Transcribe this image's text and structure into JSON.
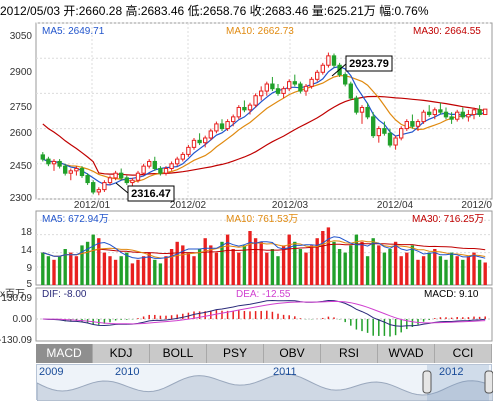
{
  "info": {
    "date": "2012/05/03",
    "open_label": "开:",
    "open": "2660.28",
    "high_label": "高:",
    "high": "2683.46",
    "low_label": "低:",
    "low": "2658.76",
    "close_label": "收:",
    "close": "2683.46",
    "volume_label": "量:",
    "volume": "625.21万",
    "change_label": "幅:",
    "change": "0.76%"
  },
  "price_panel": {
    "ma5": "MA5: 2649.71",
    "ma10": "MA10: 2662.73",
    "ma30": "MA30: 2664.55",
    "y_ticks": [
      "3050",
      "2900",
      "2750",
      "2600",
      "2450",
      "2300"
    ],
    "x_ticks": [
      "2012/01",
      "2012/02",
      "2012/03",
      "2012/04",
      "2012/0"
    ],
    "high_callout": "2923.79",
    "low_callout": "2316.47"
  },
  "volume_panel": {
    "ma5": "MA5: 672.94万",
    "ma10": "MA10: 761.53万",
    "ma30": "MA30: 716.25万",
    "y_ticks": [
      "18",
      "14",
      "9",
      "5"
    ],
    "unit": "x百万"
  },
  "macd_panel": {
    "dif": "DIF: -8.00",
    "dea": "DEA: -12.55",
    "macd": "MACD: 9.10",
    "y_ticks": [
      "130.09",
      "0.00",
      "-130.09"
    ]
  },
  "tabs": [
    "MACD",
    "KDJ",
    "BOLL",
    "PSY",
    "OBV",
    "RSI",
    "WVAD",
    "CCI"
  ],
  "navigator": {
    "years": [
      "2009",
      "2010",
      "2011",
      "2012"
    ]
  },
  "colors": {
    "up": "#e8201f",
    "down": "#21a02a",
    "ma5": "#2255cc",
    "ma10": "#e08a10",
    "ma30": "#c00000",
    "dif": "#2a2a7a",
    "dea": "#d040d0"
  },
  "chart_data": {
    "type": "candlestick",
    "x_range": [
      "2011-12-05",
      "2012-05-03"
    ],
    "y_range": [
      2300,
      3050
    ],
    "ohlc": [
      [
        2488,
        2500,
        2460,
        2470
      ],
      [
        2470,
        2480,
        2440,
        2450
      ],
      [
        2450,
        2470,
        2420,
        2460
      ],
      [
        2460,
        2470,
        2430,
        2440
      ],
      [
        2440,
        2450,
        2400,
        2410
      ],
      [
        2410,
        2430,
        2380,
        2420
      ],
      [
        2420,
        2440,
        2400,
        2430
      ],
      [
        2430,
        2440,
        2390,
        2400
      ],
      [
        2400,
        2410,
        2360,
        2370
      ],
      [
        2370,
        2380,
        2320,
        2330
      ],
      [
        2330,
        2350,
        2316,
        2340
      ],
      [
        2340,
        2380,
        2330,
        2370
      ],
      [
        2370,
        2400,
        2360,
        2390
      ],
      [
        2390,
        2420,
        2380,
        2410
      ],
      [
        2410,
        2430,
        2380,
        2390
      ],
      [
        2390,
        2400,
        2360,
        2370
      ],
      [
        2370,
        2390,
        2350,
        2380
      ],
      [
        2380,
        2420,
        2370,
        2410
      ],
      [
        2410,
        2450,
        2400,
        2440
      ],
      [
        2440,
        2470,
        2430,
        2460
      ],
      [
        2460,
        2480,
        2420,
        2430
      ],
      [
        2430,
        2440,
        2400,
        2410
      ],
      [
        2410,
        2440,
        2400,
        2430
      ],
      [
        2430,
        2460,
        2420,
        2450
      ],
      [
        2450,
        2480,
        2440,
        2470
      ],
      [
        2470,
        2500,
        2460,
        2490
      ],
      [
        2490,
        2530,
        2480,
        2520
      ],
      [
        2520,
        2560,
        2510,
        2550
      ],
      [
        2550,
        2580,
        2530,
        2540
      ],
      [
        2540,
        2570,
        2520,
        2560
      ],
      [
        2560,
        2600,
        2550,
        2590
      ],
      [
        2590,
        2630,
        2580,
        2620
      ],
      [
        2620,
        2640,
        2590,
        2600
      ],
      [
        2600,
        2640,
        2590,
        2630
      ],
      [
        2630,
        2660,
        2610,
        2650
      ],
      [
        2650,
        2700,
        2640,
        2690
      ],
      [
        2690,
        2720,
        2670,
        2680
      ],
      [
        2680,
        2710,
        2660,
        2700
      ],
      [
        2700,
        2750,
        2690,
        2740
      ],
      [
        2740,
        2780,
        2720,
        2760
      ],
      [
        2760,
        2800,
        2740,
        2790
      ],
      [
        2790,
        2820,
        2760,
        2770
      ],
      [
        2770,
        2790,
        2740,
        2750
      ],
      [
        2750,
        2780,
        2730,
        2770
      ],
      [
        2770,
        2810,
        2760,
        2800
      ],
      [
        2800,
        2830,
        2780,
        2790
      ],
      [
        2790,
        2800,
        2750,
        2760
      ],
      [
        2760,
        2790,
        2740,
        2780
      ],
      [
        2780,
        2820,
        2770,
        2810
      ],
      [
        2810,
        2850,
        2800,
        2840
      ],
      [
        2840,
        2880,
        2830,
        2870
      ],
      [
        2870,
        2924,
        2860,
        2910
      ],
      [
        2910,
        2920,
        2860,
        2870
      ],
      [
        2870,
        2880,
        2820,
        2830
      ],
      [
        2830,
        2840,
        2780,
        2790
      ],
      [
        2790,
        2800,
        2720,
        2730
      ],
      [
        2730,
        2740,
        2660,
        2670
      ],
      [
        2670,
        2700,
        2620,
        2690
      ],
      [
        2690,
        2710,
        2640,
        2650
      ],
      [
        2650,
        2670,
        2560,
        2570
      ],
      [
        2570,
        2610,
        2540,
        2600
      ],
      [
        2600,
        2630,
        2570,
        2580
      ],
      [
        2580,
        2600,
        2520,
        2530
      ],
      [
        2530,
        2570,
        2510,
        2560
      ],
      [
        2560,
        2610,
        2550,
        2600
      ],
      [
        2600,
        2640,
        2590,
        2630
      ],
      [
        2630,
        2660,
        2600,
        2610
      ],
      [
        2610,
        2640,
        2590,
        2630
      ],
      [
        2630,
        2680,
        2620,
        2670
      ],
      [
        2670,
        2700,
        2650,
        2660
      ],
      [
        2660,
        2690,
        2640,
        2680
      ],
      [
        2680,
        2710,
        2660,
        2670
      ],
      [
        2670,
        2690,
        2640,
        2650
      ],
      [
        2650,
        2670,
        2620,
        2640
      ],
      [
        2640,
        2680,
        2630,
        2670
      ],
      [
        2670,
        2690,
        2640,
        2650
      ],
      [
        2650,
        2680,
        2630,
        2660
      ],
      [
        2660,
        2690,
        2640,
        2680
      ],
      [
        2680,
        2700,
        2650,
        2660
      ],
      [
        2660,
        2683,
        2658,
        2683
      ]
    ],
    "volume": [
      9,
      8,
      7,
      8,
      10,
      9,
      8,
      11,
      12,
      14,
      13,
      9,
      8,
      7,
      8,
      9,
      6,
      7,
      8,
      9,
      7,
      6,
      8,
      10,
      12,
      11,
      9,
      8,
      10,
      13,
      11,
      9,
      12,
      14,
      10,
      9,
      11,
      15,
      13,
      12,
      9,
      10,
      8,
      11,
      14,
      12,
      10,
      9,
      11,
      13,
      15,
      16,
      12,
      10,
      9,
      11,
      14,
      12,
      8,
      13,
      11,
      9,
      10,
      12,
      8,
      9,
      11,
      7,
      8,
      9,
      10,
      8,
      7,
      9,
      8,
      7,
      8,
      9,
      7,
      6.25
    ],
    "macd_ylim": [
      -130.09,
      130.09
    ]
  }
}
